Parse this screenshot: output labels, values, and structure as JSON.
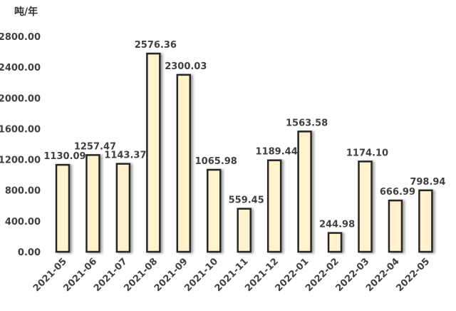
{
  "chart_data": {
    "type": "bar",
    "unit_label": "吨/年",
    "categories": [
      "2021-05",
      "2021-06",
      "2021-07",
      "2021-08",
      "2021-09",
      "2021-10",
      "2021-11",
      "2021-12",
      "2022-01",
      "2022-02",
      "2022-03",
      "2022-04",
      "2022-05"
    ],
    "values": [
      1130.09,
      1257.47,
      1143.37,
      2576.36,
      2300.03,
      1065.98,
      559.45,
      1189.44,
      1563.58,
      244.98,
      1174.1,
      666.99,
      798.94
    ],
    "data_labels": [
      "1130.09",
      "1257.47",
      "1143.37",
      "2576.36",
      "2300.03",
      "1065.98",
      "559.45",
      "1189.44",
      "1563.58",
      "244.98",
      "1174.10",
      "666.99",
      "798.94"
    ],
    "yticks": [
      "0.00",
      "400.00",
      "800.00",
      "1200.00",
      "1600.00",
      "2000.00",
      "2400.00",
      "2800.00"
    ],
    "ylim": [
      0,
      2800
    ],
    "grid": false,
    "legend": "none",
    "colors": {
      "bar_fill": "#fff2cc",
      "bar_stroke": "#262626",
      "text": "#404040"
    }
  }
}
